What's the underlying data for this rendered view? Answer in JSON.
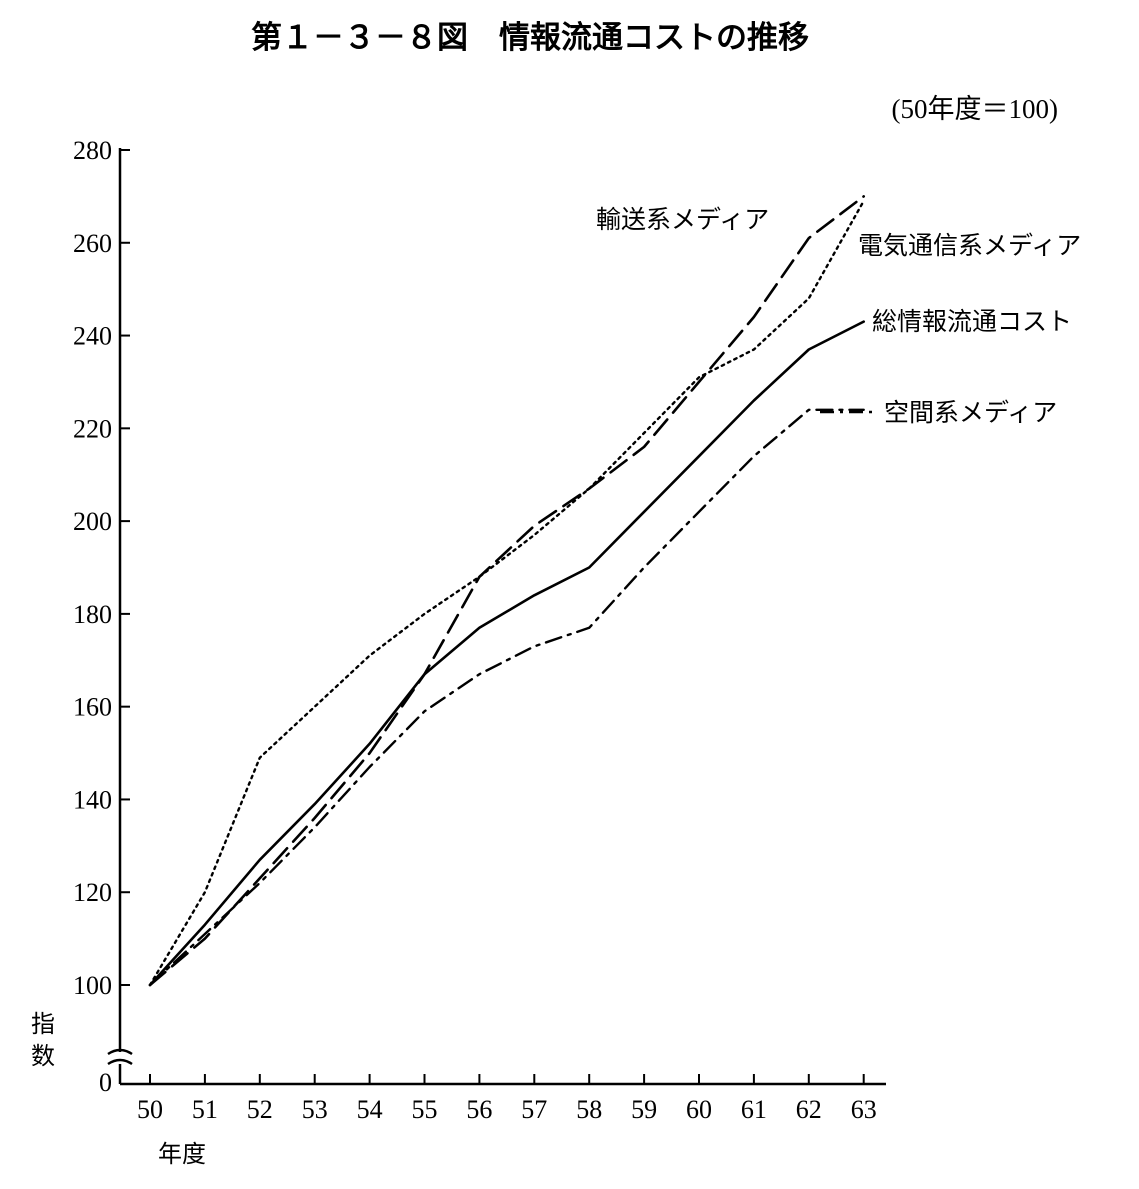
{
  "chart_data": {
    "type": "line",
    "title": "第１－３－８図　情報流通コストの推移",
    "subtitle": "(50年度＝100)",
    "xlabel": "年度",
    "ylabel": "指数",
    "x": [
      "50",
      "51",
      "52",
      "53",
      "54",
      "55",
      "56",
      "57",
      "58",
      "59",
      "60",
      "61",
      "62",
      "63"
    ],
    "y_ticks": [
      "0",
      "100",
      "120",
      "140",
      "160",
      "180",
      "200",
      "220",
      "240",
      "260",
      "280"
    ],
    "ylim": [
      100,
      280
    ],
    "axis_break": true,
    "grid": false,
    "series": [
      {
        "name": "総情報流通コスト",
        "style": "solid",
        "values": [
          100,
          113,
          127,
          139,
          152,
          167,
          177,
          184,
          190,
          202,
          214,
          226,
          237,
          243
        ]
      },
      {
        "name": "輸送系メディア",
        "style": "dashed",
        "values": [
          100,
          110,
          123,
          136,
          150,
          167,
          188,
          199,
          207,
          216,
          230,
          244,
          261,
          270
        ]
      },
      {
        "name": "電気通信系メディア",
        "style": "dotted",
        "values": [
          100,
          120,
          149,
          160,
          171,
          180,
          188,
          197,
          207,
          219,
          231,
          237,
          248,
          269
        ]
      },
      {
        "name": "空間系メディア",
        "style": "dashdot",
        "values": [
          100,
          111,
          122,
          134,
          147,
          159,
          167,
          173,
          177,
          190,
          202,
          214,
          224,
          224
        ]
      }
    ]
  }
}
